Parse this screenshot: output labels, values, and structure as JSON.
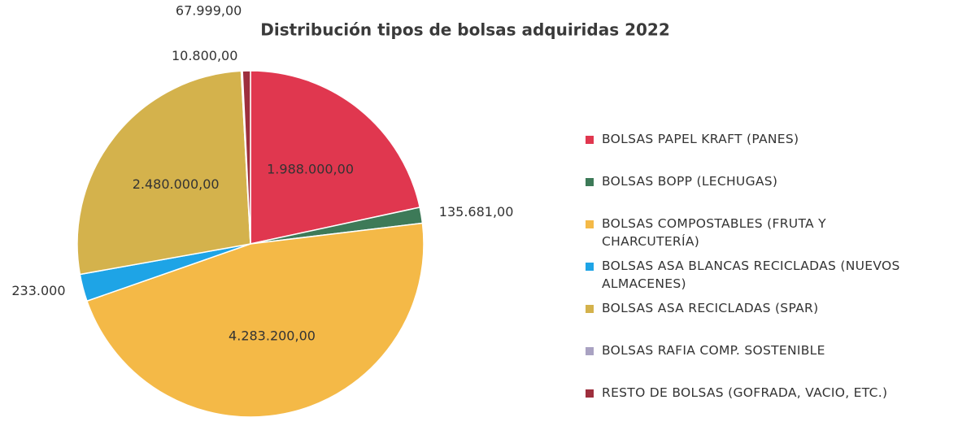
{
  "chart_data": {
    "type": "pie",
    "title": "Distribución tipos de bolsas adquiridas 2022",
    "categories": [
      "BOLSAS PAPEL KRAFT (PANES)",
      "BOLSAS BOPP (LECHUGAS)",
      "BOLSAS COMPOSTABLES (FRUTA Y CHARCUTERÍA)",
      "BOLSAS ASA BLANCAS RECICLADAS (NUEVOS ALMACENES)",
      "BOLSAS ASA RECICLADAS (SPAR)",
      "BOLSAS RAFIA COMP. SOSTENIBLE",
      "RESTO DE BOLSAS (GOFRADA, VACIO, ETC.)"
    ],
    "values": [
      1988000,
      135681,
      4283200,
      233000,
      2480000,
      10800,
      67999
    ],
    "value_labels": [
      "1.988.000,00",
      "135.681,00",
      "4.283.200,00",
      "233.000",
      "2.480.000,00",
      "10.800,00",
      "67.999,00"
    ],
    "colors": [
      "#e0374f",
      "#3d7a58",
      "#f4b947",
      "#1ea4e6",
      "#d4b24c",
      "#a9a2c2",
      "#9e2f3d"
    ],
    "legend": "right"
  }
}
